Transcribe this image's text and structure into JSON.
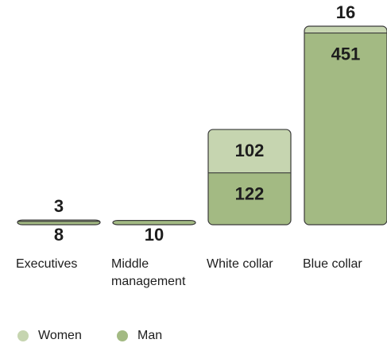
{
  "chart_data": {
    "type": "stacked_bar",
    "categories": [
      "Executives",
      "Middle management",
      "White collar",
      "Blue collar"
    ],
    "series": [
      {
        "name": "Man",
        "color": "#a3ba83",
        "values": [
          8,
          10,
          122,
          451
        ]
      },
      {
        "name": "Women",
        "color": "#c6d5b0",
        "values": [
          3,
          null,
          102,
          16
        ]
      }
    ],
    "legend": "bottom-left"
  }
}
